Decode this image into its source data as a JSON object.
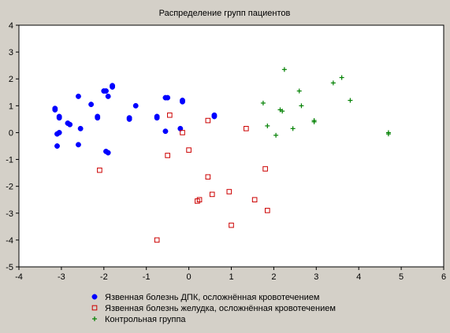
{
  "chart_data": {
    "type": "scatter",
    "title": "Распределение групп пациентов",
    "xlabel": "",
    "ylabel": "",
    "xlim": [
      -4,
      6
    ],
    "ylim": [
      -5,
      4
    ],
    "xticks": [
      -4,
      -3,
      -2,
      -1,
      0,
      1,
      2,
      3,
      4,
      5,
      6
    ],
    "yticks": [
      -5,
      -4,
      -3,
      -2,
      -1,
      0,
      1,
      2,
      3,
      4
    ],
    "grid": false,
    "legend_position": "bottom",
    "series": [
      {
        "name": "Язвенная болезнь ДПК, осложнённая кровотечением",
        "marker": "filled-circle",
        "color": "#0000ff",
        "points": [
          [
            -3.15,
            0.9
          ],
          [
            -3.15,
            0.85
          ],
          [
            -3.05,
            0.6
          ],
          [
            -3.05,
            0.55
          ],
          [
            -3.1,
            -0.05
          ],
          [
            -3.05,
            0.0
          ],
          [
            -3.1,
            -0.5
          ],
          [
            -2.85,
            0.35
          ],
          [
            -2.8,
            0.3
          ],
          [
            -2.6,
            1.35
          ],
          [
            -2.6,
            -0.45
          ],
          [
            -2.55,
            0.15
          ],
          [
            -2.3,
            1.05
          ],
          [
            -2.15,
            0.6
          ],
          [
            -2.15,
            0.55
          ],
          [
            -2.0,
            1.55
          ],
          [
            -1.95,
            1.55
          ],
          [
            -1.9,
            1.35
          ],
          [
            -1.8,
            1.75
          ],
          [
            -1.8,
            1.7
          ],
          [
            -1.9,
            -0.75
          ],
          [
            -1.95,
            -0.7
          ],
          [
            -1.4,
            0.55
          ],
          [
            -1.4,
            0.5
          ],
          [
            -1.25,
            1.0
          ],
          [
            -0.75,
            0.6
          ],
          [
            -0.75,
            0.55
          ],
          [
            -0.55,
            1.3
          ],
          [
            -0.5,
            1.3
          ],
          [
            -0.55,
            0.05
          ],
          [
            -0.15,
            1.2
          ],
          [
            -0.15,
            1.15
          ],
          [
            -0.2,
            0.15
          ],
          [
            0.6,
            0.65
          ],
          [
            0.6,
            0.6
          ]
        ]
      },
      {
        "name": "Язвенная болезнь желудка, осложнённая кровотечением",
        "marker": "open-square",
        "color": "#cc0000",
        "points": [
          [
            -2.1,
            -1.4
          ],
          [
            -0.75,
            -4.0
          ],
          [
            -0.5,
            -0.85
          ],
          [
            -0.45,
            0.65
          ],
          [
            -0.15,
            0.0
          ],
          [
            0.0,
            -0.65
          ],
          [
            0.2,
            -2.55
          ],
          [
            0.25,
            -2.5
          ],
          [
            0.45,
            -1.65
          ],
          [
            0.45,
            0.45
          ],
          [
            0.55,
            -2.3
          ],
          [
            0.95,
            -2.2
          ],
          [
            1.0,
            -3.45
          ],
          [
            1.35,
            0.15
          ],
          [
            1.55,
            -2.5
          ],
          [
            1.8,
            -1.35
          ],
          [
            1.85,
            -2.9
          ]
        ]
      },
      {
        "name": "Контрольная группа",
        "marker": "plus",
        "color": "#008000",
        "points": [
          [
            1.75,
            1.1
          ],
          [
            1.85,
            0.25
          ],
          [
            2.05,
            -0.1
          ],
          [
            2.15,
            0.85
          ],
          [
            2.2,
            0.8
          ],
          [
            2.25,
            2.35
          ],
          [
            2.45,
            0.15
          ],
          [
            2.6,
            1.55
          ],
          [
            2.65,
            1.0
          ],
          [
            2.95,
            0.45
          ],
          [
            2.95,
            0.4
          ],
          [
            3.4,
            1.85
          ],
          [
            3.6,
            2.05
          ],
          [
            3.8,
            1.2
          ],
          [
            4.7,
            0.0
          ],
          [
            4.7,
            -0.05
          ]
        ]
      }
    ]
  }
}
